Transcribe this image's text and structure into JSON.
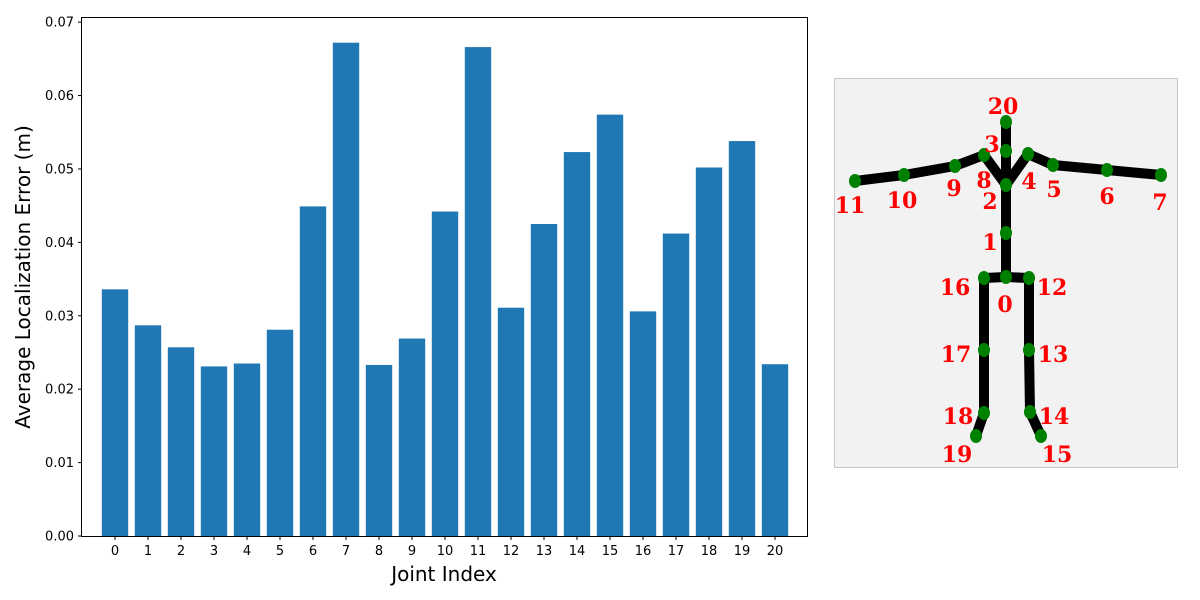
{
  "chart_data": {
    "type": "bar",
    "categories": [
      "0",
      "1",
      "2",
      "3",
      "4",
      "5",
      "6",
      "7",
      "8",
      "9",
      "10",
      "11",
      "12",
      "13",
      "14",
      "15",
      "16",
      "17",
      "18",
      "19",
      "20"
    ],
    "values": [
      0.0336,
      0.0287,
      0.0257,
      0.0231,
      0.0235,
      0.0281,
      0.0449,
      0.0672,
      0.0233,
      0.0269,
      0.0442,
      0.0666,
      0.0311,
      0.0425,
      0.0523,
      0.0574,
      0.0306,
      0.0412,
      0.0502,
      0.0538,
      0.0234
    ],
    "xlabel": "Joint Index",
    "ylabel": "Average Localization Error (m)",
    "ylim": [
      0,
      0.0707
    ],
    "yticks": [
      "0.00",
      "0.01",
      "0.02",
      "0.03",
      "0.04",
      "0.05",
      "0.06",
      "0.07"
    ],
    "bar_color": "#1f77b4",
    "grid": false
  },
  "skeleton": {
    "joint_color": "#008000",
    "bone_color": "#000000",
    "label_color": "#ff0000",
    "joint_labels": [
      "0",
      "1",
      "2",
      "3",
      "4",
      "5",
      "6",
      "7",
      "8",
      "9",
      "10",
      "11",
      "12",
      "13",
      "14",
      "15",
      "16",
      "17",
      "18",
      "19",
      "20"
    ]
  }
}
